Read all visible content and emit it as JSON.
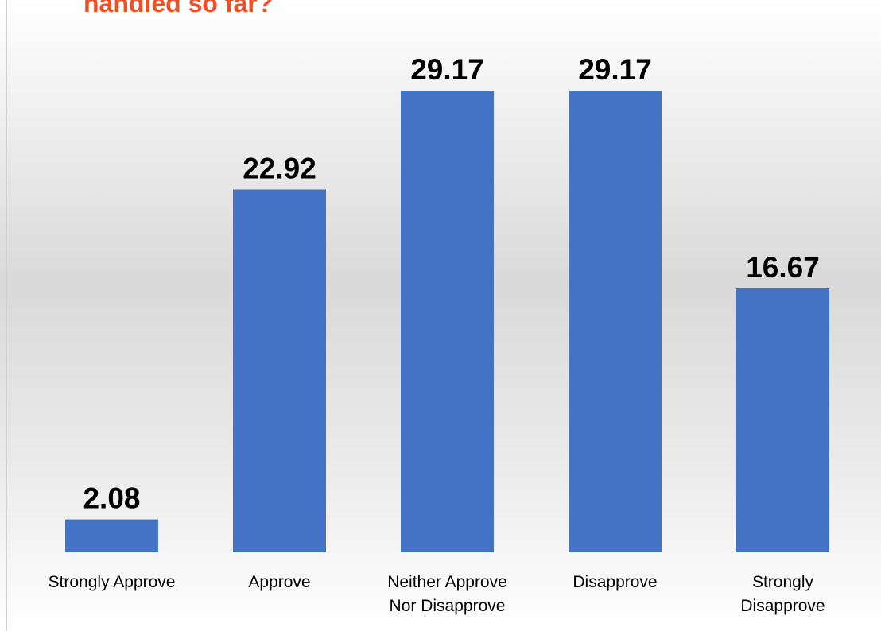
{
  "chart_data": {
    "type": "bar",
    "title": "handled so far?",
    "categories": [
      "Strongly Approve",
      "Approve",
      "Neither Approve\nNor Disapprove",
      "Disapprove",
      "Strongly\nDisapprove"
    ],
    "values": [
      2.08,
      22.92,
      29.17,
      29.17,
      16.67
    ],
    "color": "#4472c4",
    "title_color": "#f04e23",
    "grid": false
  }
}
